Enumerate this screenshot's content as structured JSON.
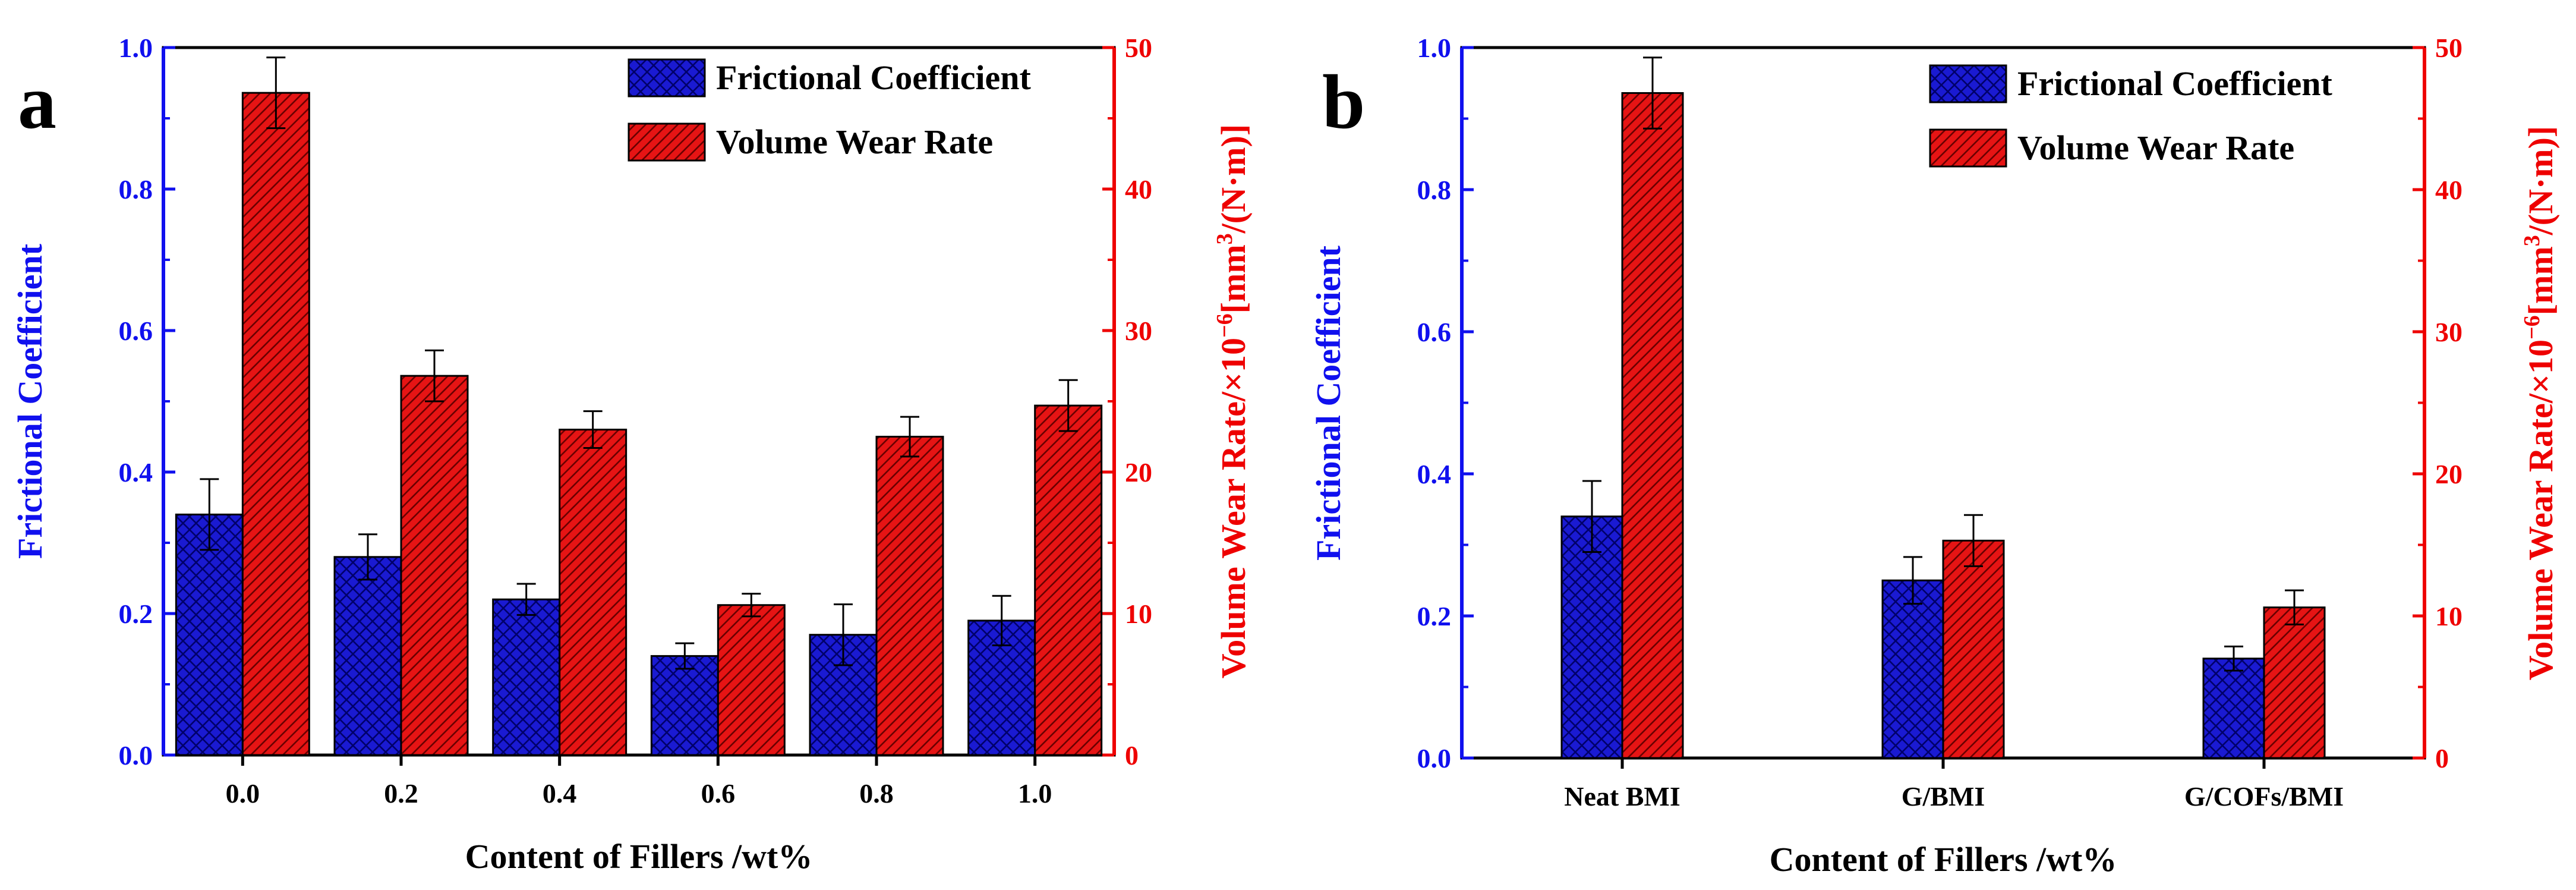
{
  "colors": {
    "left_axis": "#1010ee",
    "right_axis": "#ee0000",
    "bar_blue": "#1a1ad2",
    "bar_red": "#e61414"
  },
  "chart_data": [
    {
      "type": "bar",
      "panel_label": "a",
      "categories": [
        "0.0",
        "0.2",
        "0.4",
        "0.6",
        "0.8",
        "1.0"
      ],
      "xlabel": "Content of Fillers /wt%",
      "ylabel": "Frictional Coefficient",
      "y2label_prefix": "Volume Wear Rate/×10",
      "y2label_exp1": "−6",
      "y2label_mid": "[mm",
      "y2label_exp2": "3",
      "y2label_suffix": "/(N·m)]",
      "ylim": [
        0,
        1.0
      ],
      "y_ticks": [
        "0.0",
        "0.2",
        "0.4",
        "0.6",
        "0.8",
        "1.0"
      ],
      "y2lim": [
        0,
        50
      ],
      "y2_ticks": [
        "0",
        "10",
        "20",
        "30",
        "40",
        "50"
      ],
      "legend": [
        "Frictional Coefficient",
        "Volume Wear Rate"
      ],
      "series": [
        {
          "name": "Frictional Coefficient",
          "axis": "left",
          "values": [
            0.34,
            0.28,
            0.22,
            0.14,
            0.17,
            0.19
          ],
          "errors": [
            0.05,
            0.032,
            0.022,
            0.018,
            0.043,
            0.035
          ]
        },
        {
          "name": "Volume Wear Rate",
          "axis": "right",
          "values": [
            46.8,
            26.8,
            23.0,
            10.6,
            22.5,
            24.7
          ],
          "errors": [
            2.5,
            1.8,
            1.3,
            0.8,
            1.4,
            1.8
          ]
        }
      ]
    },
    {
      "type": "bar",
      "panel_label": "b",
      "categories": [
        "Neat BMI",
        "G/BMI",
        "G/COFs/BMI"
      ],
      "xlabel": "Content of Fillers /wt%",
      "ylabel": "Frictional Coefficient",
      "y2label_prefix": "Volume Wear Rate/×10",
      "y2label_exp1": "−6",
      "y2label_mid": "[mm",
      "y2label_exp2": "3",
      "y2label_suffix": "/(N·m)]",
      "ylim": [
        0,
        1.0
      ],
      "y_ticks": [
        "0.0",
        "0.2",
        "0.4",
        "0.6",
        "0.8",
        "1.0"
      ],
      "y2lim": [
        0,
        50
      ],
      "y2_ticks": [
        "0",
        "10",
        "20",
        "30",
        "40",
        "50"
      ],
      "legend": [
        "Frictional Coefficient",
        "Volume Wear Rate"
      ],
      "series": [
        {
          "name": "Frictional Coefficient",
          "axis": "left",
          "values": [
            0.34,
            0.25,
            0.14
          ],
          "errors": [
            0.05,
            0.033,
            0.017
          ]
        },
        {
          "name": "Volume Wear Rate",
          "axis": "right",
          "values": [
            46.8,
            15.3,
            10.6
          ],
          "errors": [
            2.5,
            1.8,
            1.2
          ]
        }
      ]
    }
  ]
}
